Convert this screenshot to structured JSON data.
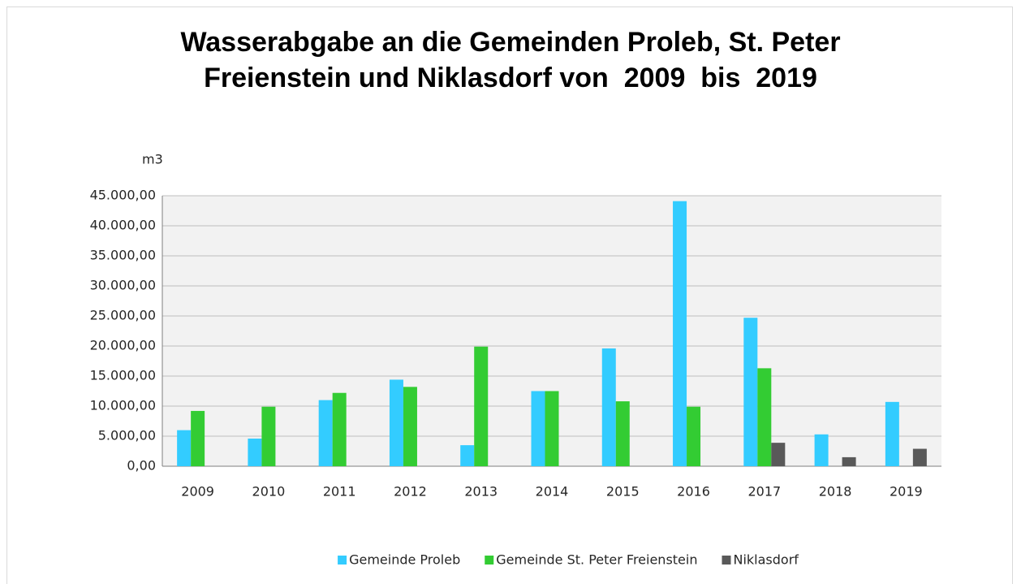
{
  "chart_data": {
    "type": "bar",
    "title": "Wasserabgabe an die Gemeinden Proleb, St. Peter Freienstein und Niklasdorf von  2009  bis  2019",
    "y_label": "m3",
    "categories": [
      "2009",
      "2010",
      "2011",
      "2012",
      "2013",
      "2014",
      "2015",
      "2016",
      "2017",
      "2018",
      "2019"
    ],
    "series": [
      {
        "name": "Gemeinde Proleb",
        "color": "#33ccff",
        "values": [
          6000,
          4600,
          11000,
          14400,
          3500,
          12500,
          19600,
          44100,
          24700,
          5300,
          10700
        ]
      },
      {
        "name": "Gemeinde St. Peter Freienstein",
        "color": "#33cc33",
        "values": [
          9200,
          9900,
          12200,
          13200,
          19900,
          12500,
          10800,
          9900,
          16300,
          null,
          null
        ]
      },
      {
        "name": "Niklasdorf",
        "color": "#595959",
        "values": [
          null,
          null,
          null,
          null,
          null,
          null,
          null,
          null,
          3900,
          1500,
          2900
        ]
      }
    ],
    "ylim": [
      0,
      45000
    ],
    "yticks": [
      {
        "value": 0,
        "label": "0,00"
      },
      {
        "value": 5000,
        "label": "5.000,00"
      },
      {
        "value": 10000,
        "label": "10.000,00"
      },
      {
        "value": 15000,
        "label": "15.000,00"
      },
      {
        "value": 20000,
        "label": "20.000,00"
      },
      {
        "value": 25000,
        "label": "25.000,00"
      },
      {
        "value": 30000,
        "label": "30.000,00"
      },
      {
        "value": 35000,
        "label": "35.000,00"
      },
      {
        "value": 40000,
        "label": "40.000,00"
      },
      {
        "value": 45000,
        "label": "45.000,00"
      }
    ],
    "grid": true,
    "legend": "bottom",
    "plot_background": "#f2f2f2"
  }
}
